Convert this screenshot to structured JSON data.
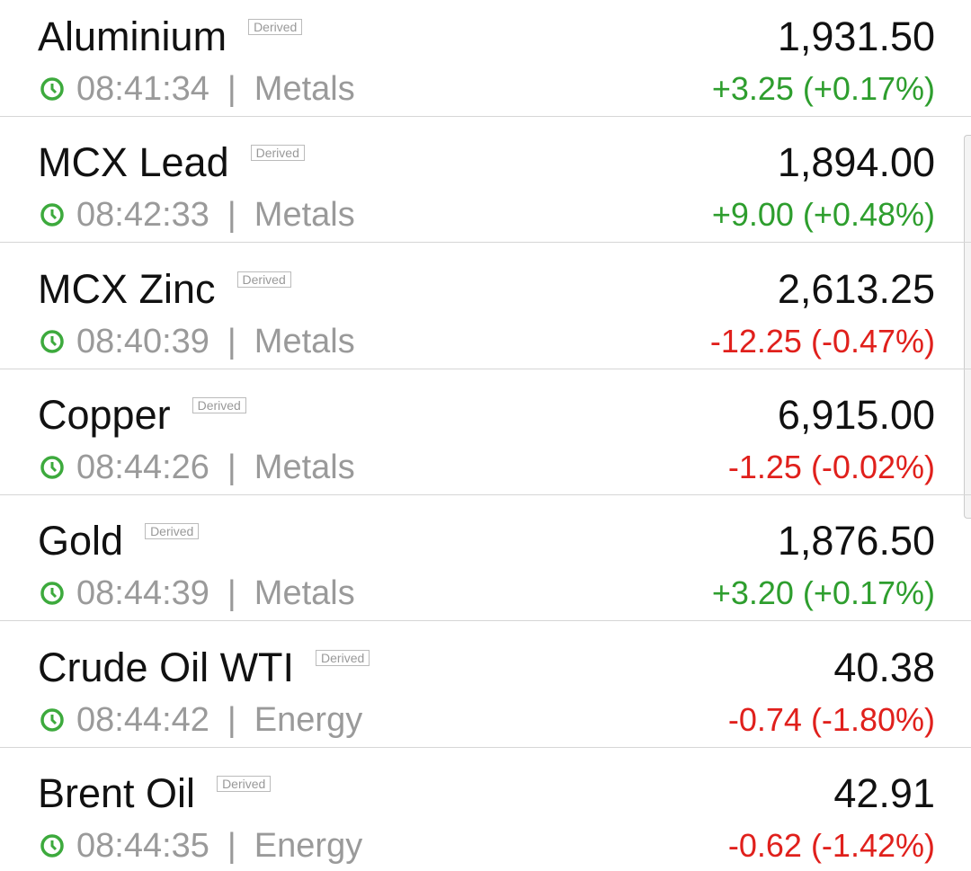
{
  "separator": "|",
  "items": [
    {
      "name": "Aluminium",
      "badge": "Derived",
      "time": "08:41:34",
      "category": "Metals",
      "price": "1,931.50",
      "change": "+3.25 (+0.17%)",
      "color": "#2e9e2e"
    },
    {
      "name": "MCX Lead",
      "badge": "Derived",
      "time": "08:42:33",
      "category": "Metals",
      "price": "1,894.00",
      "change": "+9.00 (+0.48%)",
      "color": "#2e9e2e"
    },
    {
      "name": "MCX Zinc",
      "badge": "Derived",
      "time": "08:40:39",
      "category": "Metals",
      "price": "2,613.25",
      "change": "-12.25 (-0.47%)",
      "color": "#e0201c"
    },
    {
      "name": "Copper",
      "badge": "Derived",
      "time": "08:44:26",
      "category": "Metals",
      "price": "6,915.00",
      "change": "-1.25 (-0.02%)",
      "color": "#e0201c"
    },
    {
      "name": "Gold",
      "badge": "Derived",
      "time": "08:44:39",
      "category": "Metals",
      "price": "1,876.50",
      "change": "+3.20 (+0.17%)",
      "color": "#2e9e2e"
    },
    {
      "name": "Crude Oil WTI",
      "badge": "Derived",
      "time": "08:44:42",
      "category": "Energy",
      "price": "40.38",
      "change": "-0.74 (-1.80%)",
      "color": "#e0201c"
    },
    {
      "name": "Brent Oil",
      "badge": "Derived",
      "time": "08:44:35",
      "category": "Energy",
      "price": "42.91",
      "change": "-0.62 (-1.42%)",
      "color": "#e0201c"
    }
  ]
}
